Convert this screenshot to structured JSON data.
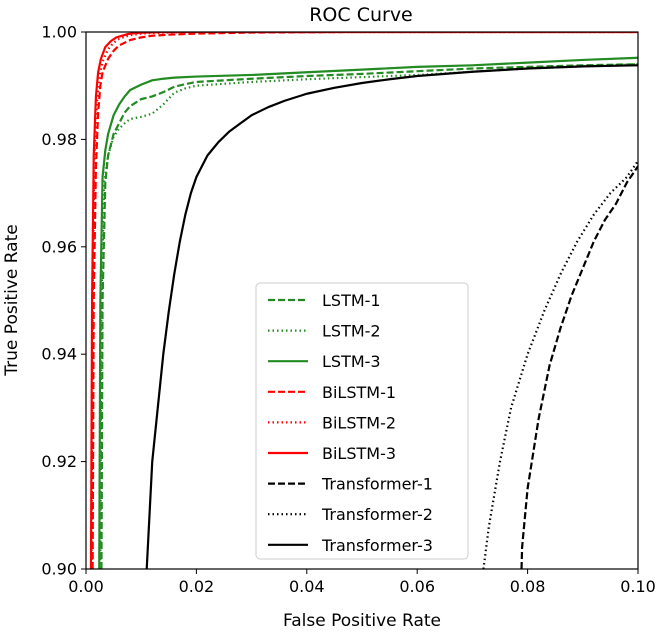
{
  "chart_data": {
    "type": "line",
    "title": "ROC Curve",
    "xlabel": "False Positive Rate",
    "ylabel": "True Positive Rate",
    "xlim": [
      0.0,
      0.1
    ],
    "ylim": [
      0.9,
      1.0
    ],
    "x_ticks": [
      0.0,
      0.02,
      0.04,
      0.06,
      0.08,
      0.1
    ],
    "x_tick_labels": [
      "0.00",
      "0.02",
      "0.04",
      "0.06",
      "0.08",
      "0.10"
    ],
    "y_ticks": [
      0.9,
      0.92,
      0.94,
      0.96,
      0.98,
      1.0
    ],
    "y_tick_labels": [
      "0.90",
      "0.92",
      "0.94",
      "0.96",
      "0.98",
      "1.00"
    ],
    "grid": false,
    "legend_position": "lower-center",
    "series": [
      {
        "name": "LSTM-1",
        "color": "#228b22",
        "dash": "dashed",
        "x": [
          0.0028,
          0.003,
          0.0035,
          0.004,
          0.005,
          0.006,
          0.007,
          0.008,
          0.01,
          0.012,
          0.014,
          0.016,
          0.018,
          0.02,
          0.03,
          0.04,
          0.05,
          0.06,
          0.07,
          0.08,
          0.09,
          0.1
        ],
        "y": [
          0.9,
          0.95,
          0.972,
          0.977,
          0.981,
          0.983,
          0.985,
          0.9862,
          0.9875,
          0.988,
          0.9888,
          0.9898,
          0.9903,
          0.9907,
          0.9913,
          0.9918,
          0.9922,
          0.9927,
          0.9932,
          0.9935,
          0.9938,
          0.994
        ]
      },
      {
        "name": "LSTM-2",
        "color": "#228b22",
        "dash": "dotted",
        "x": [
          0.0026,
          0.0028,
          0.0033,
          0.004,
          0.005,
          0.006,
          0.007,
          0.008,
          0.01,
          0.012,
          0.014,
          0.016,
          0.018,
          0.02,
          0.03,
          0.04,
          0.05,
          0.06,
          0.07,
          0.08,
          0.09,
          0.1
        ],
        "y": [
          0.9,
          0.95,
          0.972,
          0.977,
          0.9805,
          0.982,
          0.983,
          0.9838,
          0.9842,
          0.9848,
          0.9865,
          0.9887,
          0.9895,
          0.99,
          0.9907,
          0.9912,
          0.9916,
          0.992,
          0.9926,
          0.9932,
          0.9936,
          0.994
        ]
      },
      {
        "name": "LSTM-3",
        "color": "#228b22",
        "dash": "solid",
        "x": [
          0.0024,
          0.0026,
          0.003,
          0.0035,
          0.004,
          0.005,
          0.006,
          0.007,
          0.008,
          0.01,
          0.012,
          0.014,
          0.016,
          0.02,
          0.03,
          0.04,
          0.05,
          0.06,
          0.07,
          0.08,
          0.09,
          0.1
        ],
        "y": [
          0.9,
          0.95,
          0.973,
          0.978,
          0.981,
          0.9845,
          0.9865,
          0.988,
          0.9892,
          0.9902,
          0.991,
          0.9913,
          0.9915,
          0.9917,
          0.992,
          0.9925,
          0.993,
          0.9935,
          0.9938,
          0.9943,
          0.9948,
          0.9952
        ]
      },
      {
        "name": "BiLSTM-1",
        "color": "#ff0000",
        "dash": "dashed",
        "x": [
          0.0012,
          0.0014,
          0.0018,
          0.0022,
          0.0026,
          0.003,
          0.004,
          0.005,
          0.006,
          0.007,
          0.008,
          0.01,
          0.012,
          0.015,
          0.02,
          0.03,
          0.05,
          0.1
        ],
        "y": [
          0.9,
          0.95,
          0.975,
          0.985,
          0.99,
          0.9925,
          0.995,
          0.9965,
          0.9975,
          0.998,
          0.9985,
          0.999,
          0.9993,
          0.9995,
          0.9997,
          0.9999,
          1.0,
          1.0
        ]
      },
      {
        "name": "BiLSTM-2",
        "color": "#ff0000",
        "dash": "dotted",
        "x": [
          0.001,
          0.0012,
          0.0015,
          0.002,
          0.0025,
          0.003,
          0.004,
          0.005,
          0.006,
          0.007,
          0.008,
          0.01,
          0.012,
          0.015,
          0.02,
          0.03,
          0.1
        ],
        "y": [
          0.9,
          0.95,
          0.976,
          0.987,
          0.992,
          0.9945,
          0.9968,
          0.998,
          0.9987,
          0.9991,
          0.9994,
          0.9997,
          0.9998,
          0.9999,
          1.0,
          1.0,
          1.0
        ]
      },
      {
        "name": "BiLSTM-3",
        "color": "#ff0000",
        "dash": "solid",
        "x": [
          0.0009,
          0.0011,
          0.0014,
          0.0018,
          0.0022,
          0.0027,
          0.0035,
          0.0045,
          0.0055,
          0.0065,
          0.0075,
          0.009,
          0.011,
          0.014,
          0.02,
          0.1
        ],
        "y": [
          0.9,
          0.95,
          0.977,
          0.988,
          0.9925,
          0.995,
          0.9972,
          0.9983,
          0.999,
          0.9993,
          0.9996,
          0.9998,
          0.9999,
          1.0,
          1.0,
          1.0
        ]
      },
      {
        "name": "Transformer-1",
        "color": "#000000",
        "dash": "dashed",
        "x": [
          0.0789,
          0.079,
          0.08,
          0.082,
          0.084,
          0.086,
          0.088,
          0.09,
          0.092,
          0.094,
          0.096,
          0.098,
          0.1
        ],
        "y": [
          0.9,
          0.904,
          0.915,
          0.928,
          0.938,
          0.945,
          0.951,
          0.956,
          0.961,
          0.965,
          0.968,
          0.972,
          0.975
        ]
      },
      {
        "name": "Transformer-2",
        "color": "#000000",
        "dash": "dotted",
        "x": [
          0.072,
          0.073,
          0.075,
          0.077,
          0.08,
          0.083,
          0.086,
          0.089,
          0.092,
          0.095,
          0.098,
          0.1
        ],
        "y": [
          0.9,
          0.908,
          0.92,
          0.93,
          0.94,
          0.948,
          0.955,
          0.961,
          0.966,
          0.97,
          0.973,
          0.976
        ]
      },
      {
        "name": "Transformer-3",
        "color": "#000000",
        "dash": "solid",
        "x": [
          0.011,
          0.0115,
          0.012,
          0.013,
          0.014,
          0.015,
          0.016,
          0.017,
          0.018,
          0.019,
          0.02,
          0.022,
          0.024,
          0.026,
          0.028,
          0.03,
          0.033,
          0.036,
          0.04,
          0.045,
          0.05,
          0.055,
          0.06,
          0.065,
          0.07,
          0.08,
          0.09,
          0.1
        ],
        "y": [
          0.9,
          0.91,
          0.92,
          0.93,
          0.94,
          0.948,
          0.955,
          0.961,
          0.966,
          0.97,
          0.973,
          0.977,
          0.9795,
          0.9815,
          0.983,
          0.9845,
          0.986,
          0.9872,
          0.9885,
          0.9896,
          0.9905,
          0.9912,
          0.9918,
          0.9922,
          0.9926,
          0.9932,
          0.9936,
          0.9938
        ]
      }
    ]
  }
}
